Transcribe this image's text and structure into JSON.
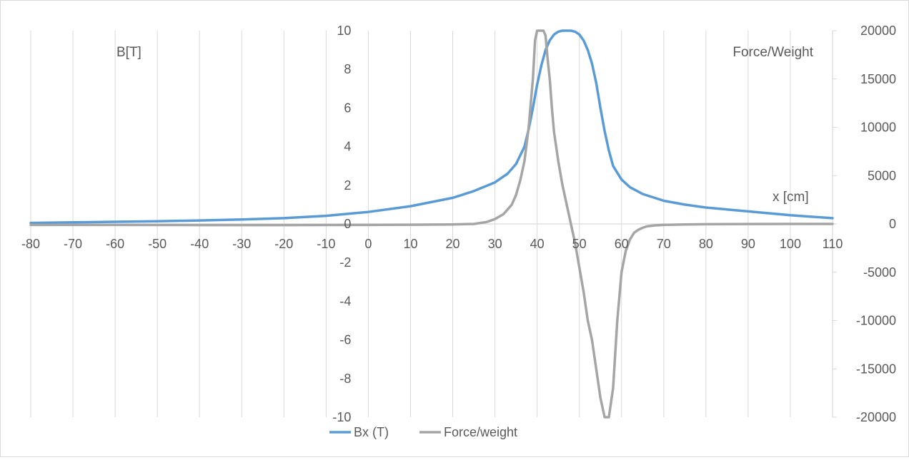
{
  "chart_data": {
    "type": "line",
    "title": "",
    "x_axis": {
      "label": "x [cm]",
      "range": [
        -80,
        110
      ],
      "ticks": [
        -80,
        -70,
        -60,
        -50,
        -40,
        -30,
        -20,
        -10,
        0,
        10,
        20,
        30,
        40,
        50,
        60,
        70,
        80,
        90,
        100,
        110
      ]
    },
    "y_axis_left": {
      "label": "B[T]",
      "range": [
        -10,
        10
      ],
      "ticks": [
        -10,
        -8,
        -6,
        -4,
        -2,
        0,
        2,
        4,
        6,
        8,
        10
      ]
    },
    "y_axis_right": {
      "label": "Force/Weight",
      "range": [
        -20000,
        20000
      ],
      "ticks": [
        -20000,
        -15000,
        -10000,
        -5000,
        0,
        5000,
        10000,
        15000,
        20000
      ]
    },
    "grid": "vertical major gridlines",
    "legend": {
      "position": "bottom",
      "entries": [
        "Bx (T)",
        "Force/weight"
      ]
    },
    "series": [
      {
        "name": "Bx (T)",
        "axis": "left",
        "color": "#5b9bd5",
        "x": [
          -80,
          -70,
          -60,
          -50,
          -40,
          -30,
          -20,
          -10,
          0,
          10,
          20,
          25,
          30,
          33,
          35,
          37,
          38,
          39,
          40,
          41,
          42,
          43,
          44,
          45,
          46,
          47,
          48,
          49,
          50,
          51,
          52,
          53,
          54,
          55,
          56,
          57,
          58,
          60,
          62,
          65,
          70,
          75,
          80,
          90,
          100,
          110
        ],
        "y": [
          0.05,
          0.08,
          0.11,
          0.14,
          0.18,
          0.23,
          0.3,
          0.42,
          0.62,
          0.92,
          1.35,
          1.7,
          2.15,
          2.6,
          3.1,
          4.0,
          4.9,
          6.0,
          7.2,
          8.2,
          9.0,
          9.5,
          9.8,
          9.95,
          10.0,
          10.0,
          10.0,
          9.95,
          9.8,
          9.5,
          9.0,
          8.3,
          7.3,
          6.0,
          4.8,
          3.8,
          3.0,
          2.3,
          1.9,
          1.55,
          1.2,
          1.0,
          0.85,
          0.65,
          0.45,
          0.3
        ]
      },
      {
        "name": "Force/weight",
        "axis": "right",
        "color": "#a5a5a5",
        "x": [
          -80,
          -60,
          -40,
          -20,
          0,
          10,
          20,
          25,
          28,
          30,
          32,
          33,
          34,
          35,
          36,
          37,
          38,
          39,
          39.5,
          40,
          40.5,
          41,
          41.5,
          42,
          42.5,
          43,
          43.5,
          44,
          45,
          46,
          47,
          48,
          49,
          50,
          51,
          52,
          53,
          54,
          55,
          56,
          57,
          58,
          59,
          60,
          61,
          62,
          63,
          64,
          65,
          66,
          68,
          70,
          75,
          80,
          90,
          100,
          110
        ],
        "y": [
          -100,
          -100,
          -120,
          -120,
          -100,
          -80,
          -50,
          0,
          200,
          500,
          1000,
          1500,
          2000,
          3000,
          4500,
          6500,
          10000,
          15000,
          19000,
          20000,
          20000,
          20000,
          20000,
          19500,
          17000,
          15000,
          12000,
          9500,
          6500,
          4000,
          2000,
          0,
          -2000,
          -4500,
          -7000,
          -10000,
          -12000,
          -15000,
          -18000,
          -20000,
          -20000,
          -17000,
          -10000,
          -5000,
          -2800,
          -1600,
          -900,
          -600,
          -400,
          -250,
          -150,
          -100,
          -60,
          -30,
          -10,
          0,
          0
        ]
      }
    ]
  }
}
